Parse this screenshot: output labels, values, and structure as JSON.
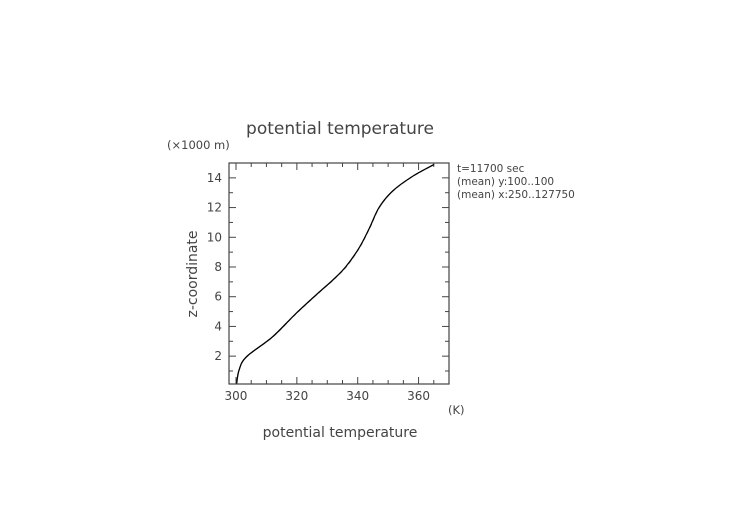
{
  "chart_data": {
    "type": "line",
    "title": "potential temperature",
    "xlabel": "potential temperature",
    "xunit": "(K)",
    "ylabel": "z-coordinate",
    "yunit": "(×1000 m)",
    "xlim": [
      297.7,
      370
    ],
    "ylim": [
      0.125,
      15
    ],
    "xticks": [
      300,
      320,
      340,
      360
    ],
    "yticks": [
      2,
      4,
      6,
      8,
      10,
      12,
      14
    ],
    "grid": false,
    "annotations": [
      "t=11700 sec",
      "(mean) y:100..100",
      "(mean) x:250..127750"
    ],
    "series": [
      {
        "style": "solid",
        "color": "#000000",
        "x": [
          300.2,
          301.0,
          303.4,
          312.0,
          319.6,
          327.3,
          331.7,
          336.0,
          340.5,
          343.8,
          347.0,
          351.4,
          358.0,
          365.1
        ],
        "y": [
          0.13,
          1.06,
          1.95,
          3.3,
          4.85,
          6.3,
          7.1,
          8.0,
          9.3,
          10.6,
          12.0,
          13.1,
          14.1,
          14.9
        ]
      },
      {
        "style": "dashed",
        "color": "#999999",
        "x": [
          300.2,
          301.0,
          303.5,
          312.1,
          319.7,
          327.4,
          331.8,
          336.2,
          340.6,
          343.9,
          347.1,
          351.5,
          358.1,
          365.2
        ],
        "y": [
          0.13,
          1.06,
          1.95,
          3.3,
          4.85,
          6.3,
          7.1,
          8.0,
          9.3,
          10.6,
          12.0,
          13.1,
          14.1,
          14.9
        ]
      }
    ]
  }
}
